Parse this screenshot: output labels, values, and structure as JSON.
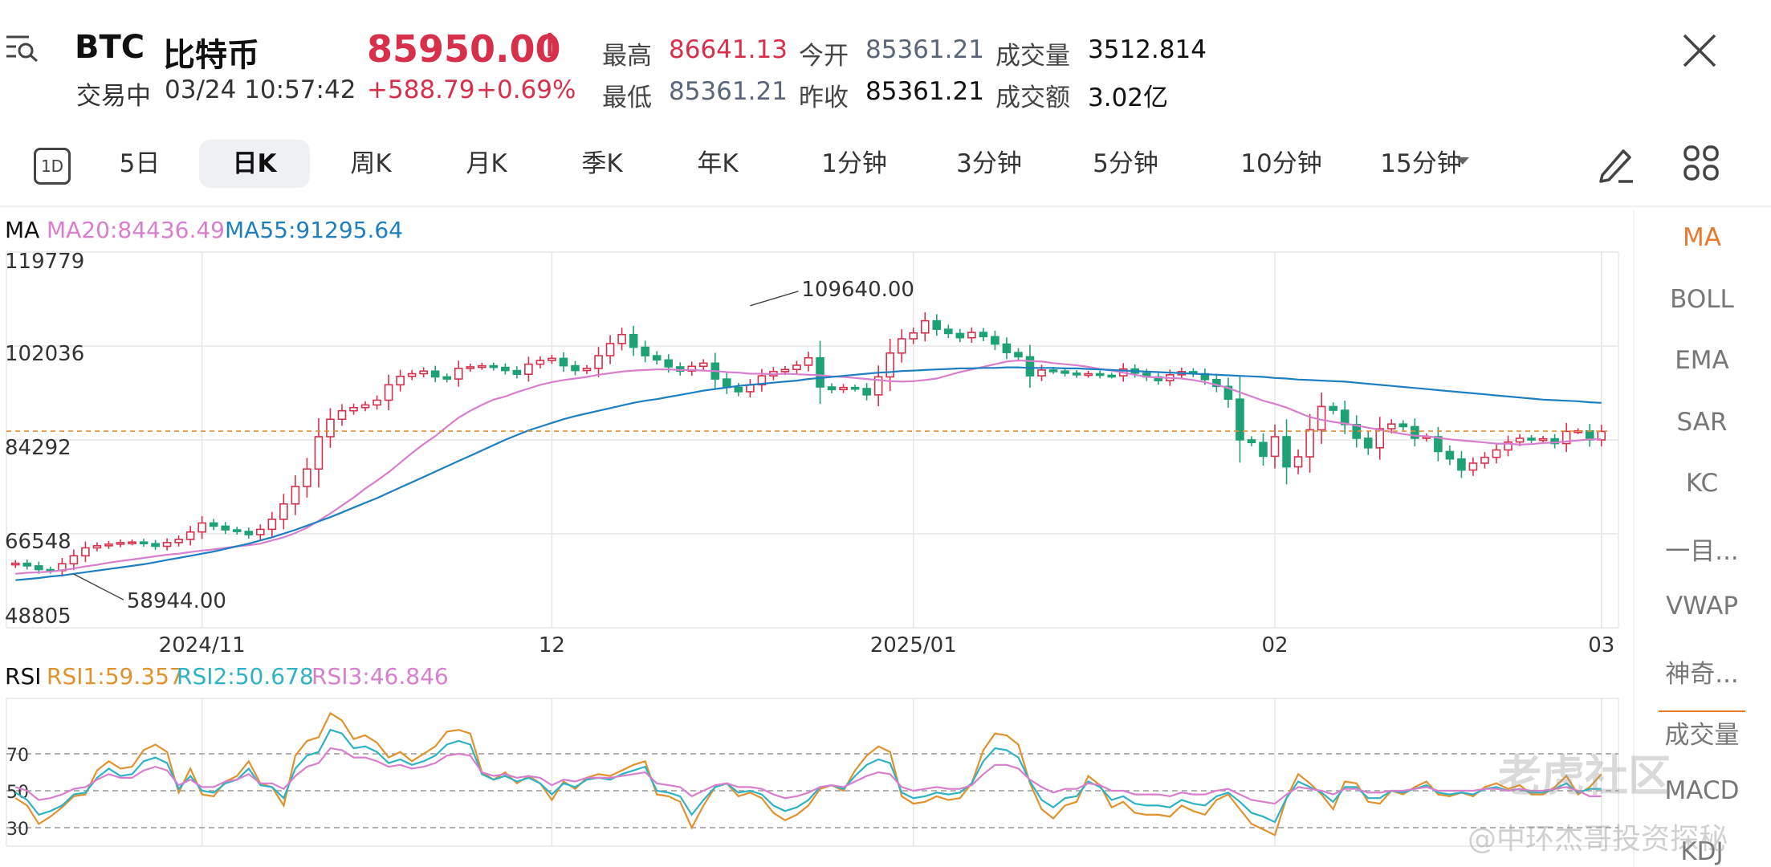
{
  "header": {
    "menu_icon": "menu-search-icon",
    "symbol": "BTC",
    "name": "比特币",
    "status": "交易中",
    "datetime": "03/24 10:57:42",
    "price": "85950.00",
    "price_arrow": "↑",
    "change": "+588.79",
    "change_pct": "+0.69%",
    "high_label": "最高",
    "high": "86641.13",
    "low_label": "最低",
    "low": "85361.21",
    "open_label": "今开",
    "open": "85361.21",
    "prev_label": "昨收",
    "prev": "85361.21",
    "vol_label": "成交量",
    "vol": "3512.814",
    "amt_label": "成交额",
    "amt": "3.02亿",
    "close_icon": "close-icon"
  },
  "period_tabs": [
    {
      "label": "5日"
    },
    {
      "label": "日K",
      "active": true
    },
    {
      "label": "周K"
    },
    {
      "label": "月K"
    },
    {
      "label": "季K"
    },
    {
      "label": "年K"
    },
    {
      "label": "1分钟"
    },
    {
      "label": "3分钟"
    },
    {
      "label": "5分钟"
    },
    {
      "label": "10分钟"
    },
    {
      "label": "15分钟"
    }
  ],
  "toolbar": {
    "oneday_icon": "1D",
    "draw_icon": "pencil-icon",
    "grid_icon": "grid-icon"
  },
  "indicators": [
    "MA",
    "BOLL",
    "EMA",
    "SAR",
    "KC",
    "一目...",
    "VWAP",
    "神奇...",
    "成交量",
    "MACD",
    "KDJ"
  ],
  "ma_legend": {
    "title": "MA",
    "ma20": "MA20:84436.49",
    "ma55": "MA55:91295.64"
  },
  "rsi_legend": {
    "title": "RSI",
    "rsi1": "RSI1:59.357",
    "rsi2": "RSI2:50.678",
    "rsi3": "RSI3:46.846"
  },
  "colors": {
    "up": "#d6304b",
    "down": "#1fa176",
    "ma20": "#d77fcd",
    "ma55": "#1e7fc0",
    "rsi1": "#e0922f",
    "rsi2": "#2fb3c4",
    "rsi3": "#d77fcd",
    "accent": "#e8792f"
  },
  "watermark": {
    "logo": "老虎社区",
    "author": "@中环杰哥投资探秘"
  },
  "chart_data": [
    {
      "type": "candlestick",
      "ylim": [
        48805,
        119779
      ],
      "y_ticks": [
        "119779",
        "102036",
        "84292",
        "66548",
        "48805"
      ],
      "x_ticks": [
        {
          "label": "2024/11",
          "index": 16
        },
        {
          "label": "12",
          "index": 46
        },
        {
          "label": "2025/01",
          "index": 77
        },
        {
          "label": "02",
          "index": 108
        },
        {
          "label": "03",
          "index": 136
        }
      ],
      "annotations": [
        {
          "text": "109640.00",
          "index": 63,
          "value": 109640
        },
        {
          "text": "58944.00",
          "index": 5,
          "value": 58944
        }
      ],
      "current_price": 85950,
      "close": [
        61000,
        60500,
        59800,
        59600,
        60900,
        62400,
        63900,
        64300,
        64600,
        64900,
        65000,
        64700,
        64200,
        64900,
        65500,
        66900,
        68600,
        68000,
        67300,
        67000,
        66400,
        67400,
        69300,
        72200,
        75500,
        78800,
        84900,
        88200,
        89800,
        90400,
        90900,
        91800,
        94700,
        96300,
        96800,
        97300,
        96200,
        95800,
        97800,
        98100,
        98300,
        98000,
        97400,
        96700,
        98600,
        99300,
        99700,
        98300,
        97400,
        97800,
        100200,
        102500,
        104200,
        101800,
        100200,
        99400,
        98100,
        97300,
        98200,
        98800,
        95800,
        94200,
        93400,
        94700,
        96400,
        97200,
        97600,
        98400,
        99800,
        94300,
        93800,
        94200,
        94000,
        92800,
        96200,
        100700,
        103400,
        104500,
        106800,
        105200,
        104400,
        103600,
        104600,
        103800,
        102400,
        100800,
        100000,
        96400,
        97500,
        97300,
        96900,
        96600,
        96800,
        96500,
        96400,
        97700,
        96900,
        96200,
        95500,
        96600,
        97200,
        96800,
        95700,
        94400,
        92000,
        84300,
        83800,
        81200,
        84900,
        79200,
        81100,
        86200,
        90600,
        89900,
        87200,
        84600,
        82800,
        86400,
        87300,
        86800,
        84600,
        84900,
        82100,
        80700,
        78600,
        79900,
        81000,
        82400,
        83900,
        84600,
        84300,
        84500,
        83600,
        85900,
        86000,
        84300,
        85900
      ],
      "ma20": [
        59000,
        59200,
        59300,
        59400,
        59700,
        60000,
        60400,
        60700,
        61100,
        61400,
        61700,
        62000,
        62300,
        62600,
        62800,
        63100,
        63400,
        63600,
        63900,
        64200,
        64400,
        64700,
        65300,
        65900,
        66700,
        67700,
        69000,
        70400,
        71900,
        73400,
        75100,
        76600,
        78200,
        80000,
        81800,
        83500,
        85000,
        86800,
        88500,
        89800,
        90900,
        91900,
        92500,
        93300,
        94000,
        94700,
        95200,
        95600,
        95900,
        96200,
        96600,
        96900,
        97200,
        97400,
        97500,
        97600,
        97600,
        97500,
        97500,
        97400,
        97300,
        97100,
        97000,
        96800,
        96800,
        96700,
        96800,
        96700,
        96600,
        96500,
        96300,
        96200,
        96000,
        95800,
        95600,
        95400,
        95300,
        95400,
        95600,
        95900,
        96500,
        97100,
        97600,
        98100,
        98600,
        99100,
        99300,
        99200,
        99100,
        98800,
        98600,
        98400,
        98100,
        97700,
        97400,
        97000,
        96600,
        96200,
        96100,
        96000,
        95900,
        95600,
        95200,
        94700,
        94100,
        93300,
        92500,
        91700,
        91100,
        90400,
        89500,
        88600,
        88100,
        87700,
        87400,
        87000,
        86600,
        86200,
        85800,
        85400,
        85100,
        85000,
        84700,
        84400,
        84200,
        84000,
        83800,
        83600,
        83600,
        83400,
        83500,
        83700,
        83800,
        84000,
        84200,
        84400,
        84436
      ],
      "ma55": [
        57800,
        58000,
        58200,
        58500,
        58700,
        59000,
        59300,
        59600,
        59900,
        60200,
        60500,
        60800,
        61200,
        61600,
        62000,
        62400,
        62800,
        63200,
        63700,
        64200,
        64700,
        65300,
        65900,
        66600,
        67300,
        68100,
        68900,
        69700,
        70600,
        71500,
        72400,
        73300,
        74300,
        75300,
        76300,
        77300,
        78300,
        79300,
        80300,
        81300,
        82300,
        83300,
        84300,
        85200,
        86100,
        86800,
        87500,
        88200,
        88800,
        89300,
        89800,
        90300,
        90800,
        91300,
        91700,
        92000,
        92400,
        92800,
        93200,
        93600,
        93900,
        94200,
        94500,
        94700,
        94900,
        95100,
        95300,
        95500,
        95800,
        96000,
        96200,
        96400,
        96600,
        96800,
        97000,
        97100,
        97300,
        97400,
        97500,
        97600,
        97700,
        97800,
        97800,
        97900,
        97900,
        98000,
        98000,
        97900,
        97900,
        97900,
        97800,
        97800,
        97700,
        97600,
        97500,
        97400,
        97300,
        97200,
        97100,
        97000,
        96900,
        96800,
        96700,
        96600,
        96500,
        96400,
        96300,
        96200,
        96000,
        95900,
        95700,
        95600,
        95500,
        95400,
        95300,
        95100,
        94900,
        94700,
        94500,
        94300,
        94100,
        93900,
        93700,
        93500,
        93300,
        93100,
        92900,
        92700,
        92500,
        92300,
        92100,
        91900,
        91800,
        91700,
        91600,
        91400,
        91296
      ]
    },
    {
      "type": "line",
      "ylim": [
        20,
        100
      ],
      "y_ticks": [
        "70",
        "50",
        "30"
      ],
      "series": [
        {
          "name": "RSI1",
          "values": [
            46,
            42,
            32,
            36,
            41,
            47,
            48,
            61,
            66,
            62,
            63,
            72,
            75,
            71,
            49,
            62,
            48,
            47,
            55,
            58,
            66,
            54,
            52,
            42,
            69,
            77,
            79,
            92,
            88,
            78,
            80,
            76,
            68,
            71,
            66,
            70,
            74,
            82,
            83,
            81,
            60,
            56,
            60,
            54,
            58,
            54,
            45,
            55,
            51,
            57,
            59,
            58,
            61,
            64,
            66,
            48,
            47,
            44,
            30,
            42,
            52,
            54,
            47,
            49,
            46,
            38,
            34,
            37,
            42,
            51,
            53,
            50,
            61,
            69,
            74,
            71,
            47,
            43,
            44,
            47,
            45,
            46,
            54,
            72,
            81,
            80,
            75,
            54,
            40,
            35,
            42,
            44,
            58,
            53,
            41,
            44,
            38,
            37,
            37,
            36,
            42,
            39,
            37,
            45,
            48,
            40,
            32,
            29,
            26,
            46,
            59,
            54,
            48,
            40,
            55,
            54,
            44,
            43,
            50,
            48,
            52,
            55,
            48,
            47,
            49,
            47,
            52,
            54,
            51,
            53,
            48,
            48,
            52,
            58,
            48,
            52,
            59
          ]
        },
        {
          "name": "RSI2",
          "values": [
            49,
            45,
            37,
            39,
            42,
            48,
            49,
            57,
            62,
            58,
            59,
            66,
            68,
            65,
            51,
            58,
            50,
            49,
            54,
            56,
            62,
            53,
            52,
            46,
            62,
            69,
            71,
            83,
            81,
            73,
            74,
            71,
            65,
            67,
            64,
            66,
            69,
            75,
            77,
            75,
            59,
            56,
            58,
            55,
            57,
            54,
            48,
            54,
            52,
            56,
            57,
            56,
            59,
            61,
            63,
            50,
            49,
            47,
            37,
            45,
            52,
            54,
            49,
            50,
            48,
            42,
            39,
            41,
            45,
            52,
            53,
            51,
            58,
            64,
            67,
            65,
            49,
            46,
            47,
            49,
            48,
            49,
            54,
            66,
            73,
            72,
            68,
            55,
            45,
            41,
            46,
            47,
            55,
            52,
            45,
            47,
            43,
            42,
            42,
            41,
            45,
            43,
            42,
            47,
            49,
            44,
            38,
            36,
            33,
            46,
            55,
            52,
            49,
            44,
            52,
            52,
            46,
            46,
            50,
            49,
            51,
            53,
            49,
            48,
            49,
            48,
            51,
            52,
            50,
            51,
            49,
            49,
            51,
            54,
            49,
            51,
            51
          ]
        },
        {
          "name": "RSI3",
          "values": [
            52,
            50,
            45,
            46,
            48,
            51,
            52,
            56,
            59,
            57,
            57,
            61,
            63,
            61,
            53,
            56,
            52,
            52,
            55,
            56,
            59,
            54,
            54,
            51,
            58,
            63,
            65,
            73,
            72,
            68,
            68,
            66,
            63,
            64,
            62,
            63,
            65,
            69,
            70,
            69,
            60,
            58,
            59,
            57,
            58,
            57,
            53,
            56,
            55,
            57,
            57,
            57,
            58,
            59,
            60,
            54,
            53,
            52,
            47,
            50,
            53,
            54,
            52,
            52,
            51,
            48,
            46,
            47,
            49,
            52,
            53,
            52,
            55,
            58,
            60,
            59,
            52,
            50,
            51,
            52,
            51,
            51,
            53,
            59,
            64,
            64,
            62,
            56,
            52,
            49,
            51,
            51,
            54,
            53,
            50,
            50,
            48,
            48,
            48,
            47,
            49,
            48,
            48,
            50,
            51,
            48,
            45,
            44,
            43,
            48,
            52,
            51,
            50,
            48,
            51,
            51,
            49,
            49,
            50,
            50,
            51,
            52,
            50,
            50,
            50,
            50,
            51,
            51,
            50,
            51,
            50,
            50,
            51,
            52,
            50,
            47,
            47
          ]
        }
      ]
    }
  ]
}
